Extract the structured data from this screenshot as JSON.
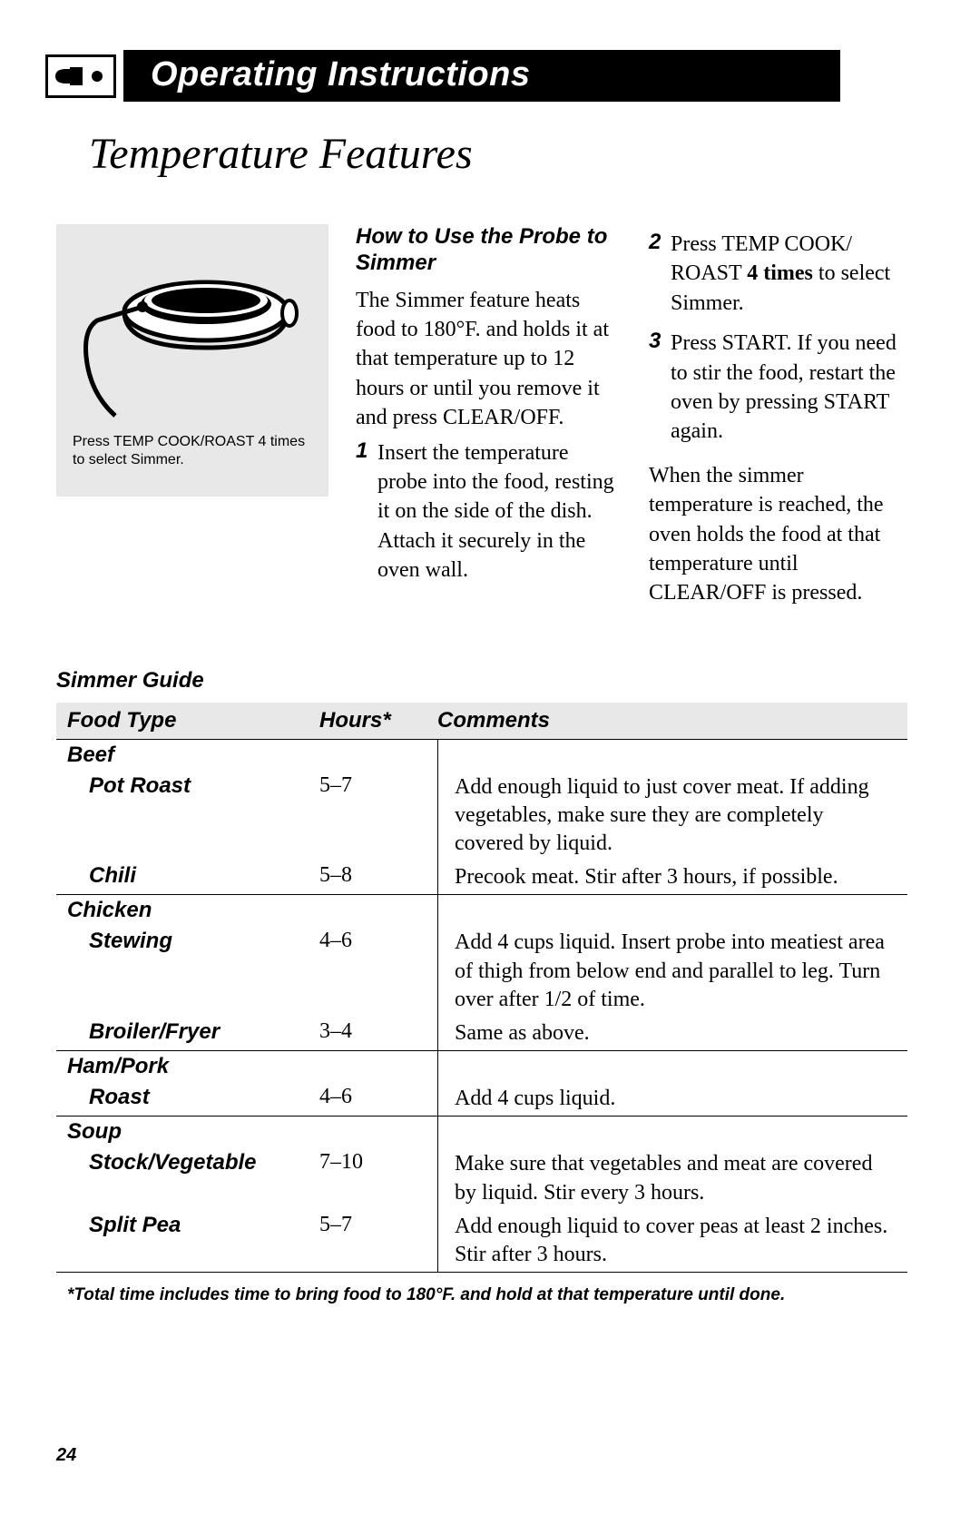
{
  "header": {
    "title": "Operating Instructions"
  },
  "section_title": "Temperature Features",
  "figure": {
    "caption": "Press TEMP COOK/ROAST 4 times to select Simmer."
  },
  "howto": {
    "heading": "How to Use the Probe to Simmer",
    "intro": "The Simmer feature heats food to 180°F. and holds it at that temperature up to 12 hours or until you remove it and press CLEAR/OFF.",
    "steps": [
      "Insert the temperature probe into the food, resting it on the side of the dish. Attach it securely in the oven wall.",
      "Press TEMP COOK/ ROAST 4 times to select Simmer.",
      "Press START. If you need to stir the food, restart the oven by pressing START again."
    ],
    "closing": "When the simmer temperature is reached, the oven holds the food at that temperature until CLEAR/OFF is pressed."
  },
  "simmer_guide": {
    "title": "Simmer Guide",
    "columns": [
      "Food Type",
      "Hours*",
      "Comments"
    ],
    "groups": [
      {
        "category": "Beef",
        "items": [
          {
            "name": "Pot Roast",
            "hours": "5–7",
            "comment": "Add enough liquid to just cover meat. If adding vegetables, make sure they are completely covered by liquid."
          },
          {
            "name": "Chili",
            "hours": "5–8",
            "comment": "Precook meat. Stir after 3 hours, if possible."
          }
        ]
      },
      {
        "category": "Chicken",
        "items": [
          {
            "name": "Stewing",
            "hours": "4–6",
            "comment": "Add 4 cups liquid. Insert probe into meatiest area of thigh from below end and parallel to leg. Turn over after 1/2 of time."
          },
          {
            "name": "Broiler/Fryer",
            "hours": "3–4",
            "comment": "Same as above."
          }
        ]
      },
      {
        "category": "Ham/Pork",
        "items": [
          {
            "name": "Roast",
            "hours": "4–6",
            "comment": "Add 4 cups liquid."
          }
        ]
      },
      {
        "category": "Soup",
        "items": [
          {
            "name": "Stock/Vegetable",
            "hours": "7–10",
            "comment": "Make sure that vegetables and meat are covered by liquid. Stir every 3 hours."
          },
          {
            "name": "Split Pea",
            "hours": "5–7",
            "comment": "Add enough liquid to cover peas at least 2 inches. Stir after 3 hours."
          }
        ]
      }
    ],
    "footnote": "*Total time includes time to bring food to 180°F. and hold at that temperature until done."
  },
  "page_number": "24",
  "colors": {
    "bg": "#ffffff",
    "text": "#000000",
    "panel": "#e8e8e8",
    "header_bg": "#000000",
    "header_text": "#ffffff"
  }
}
